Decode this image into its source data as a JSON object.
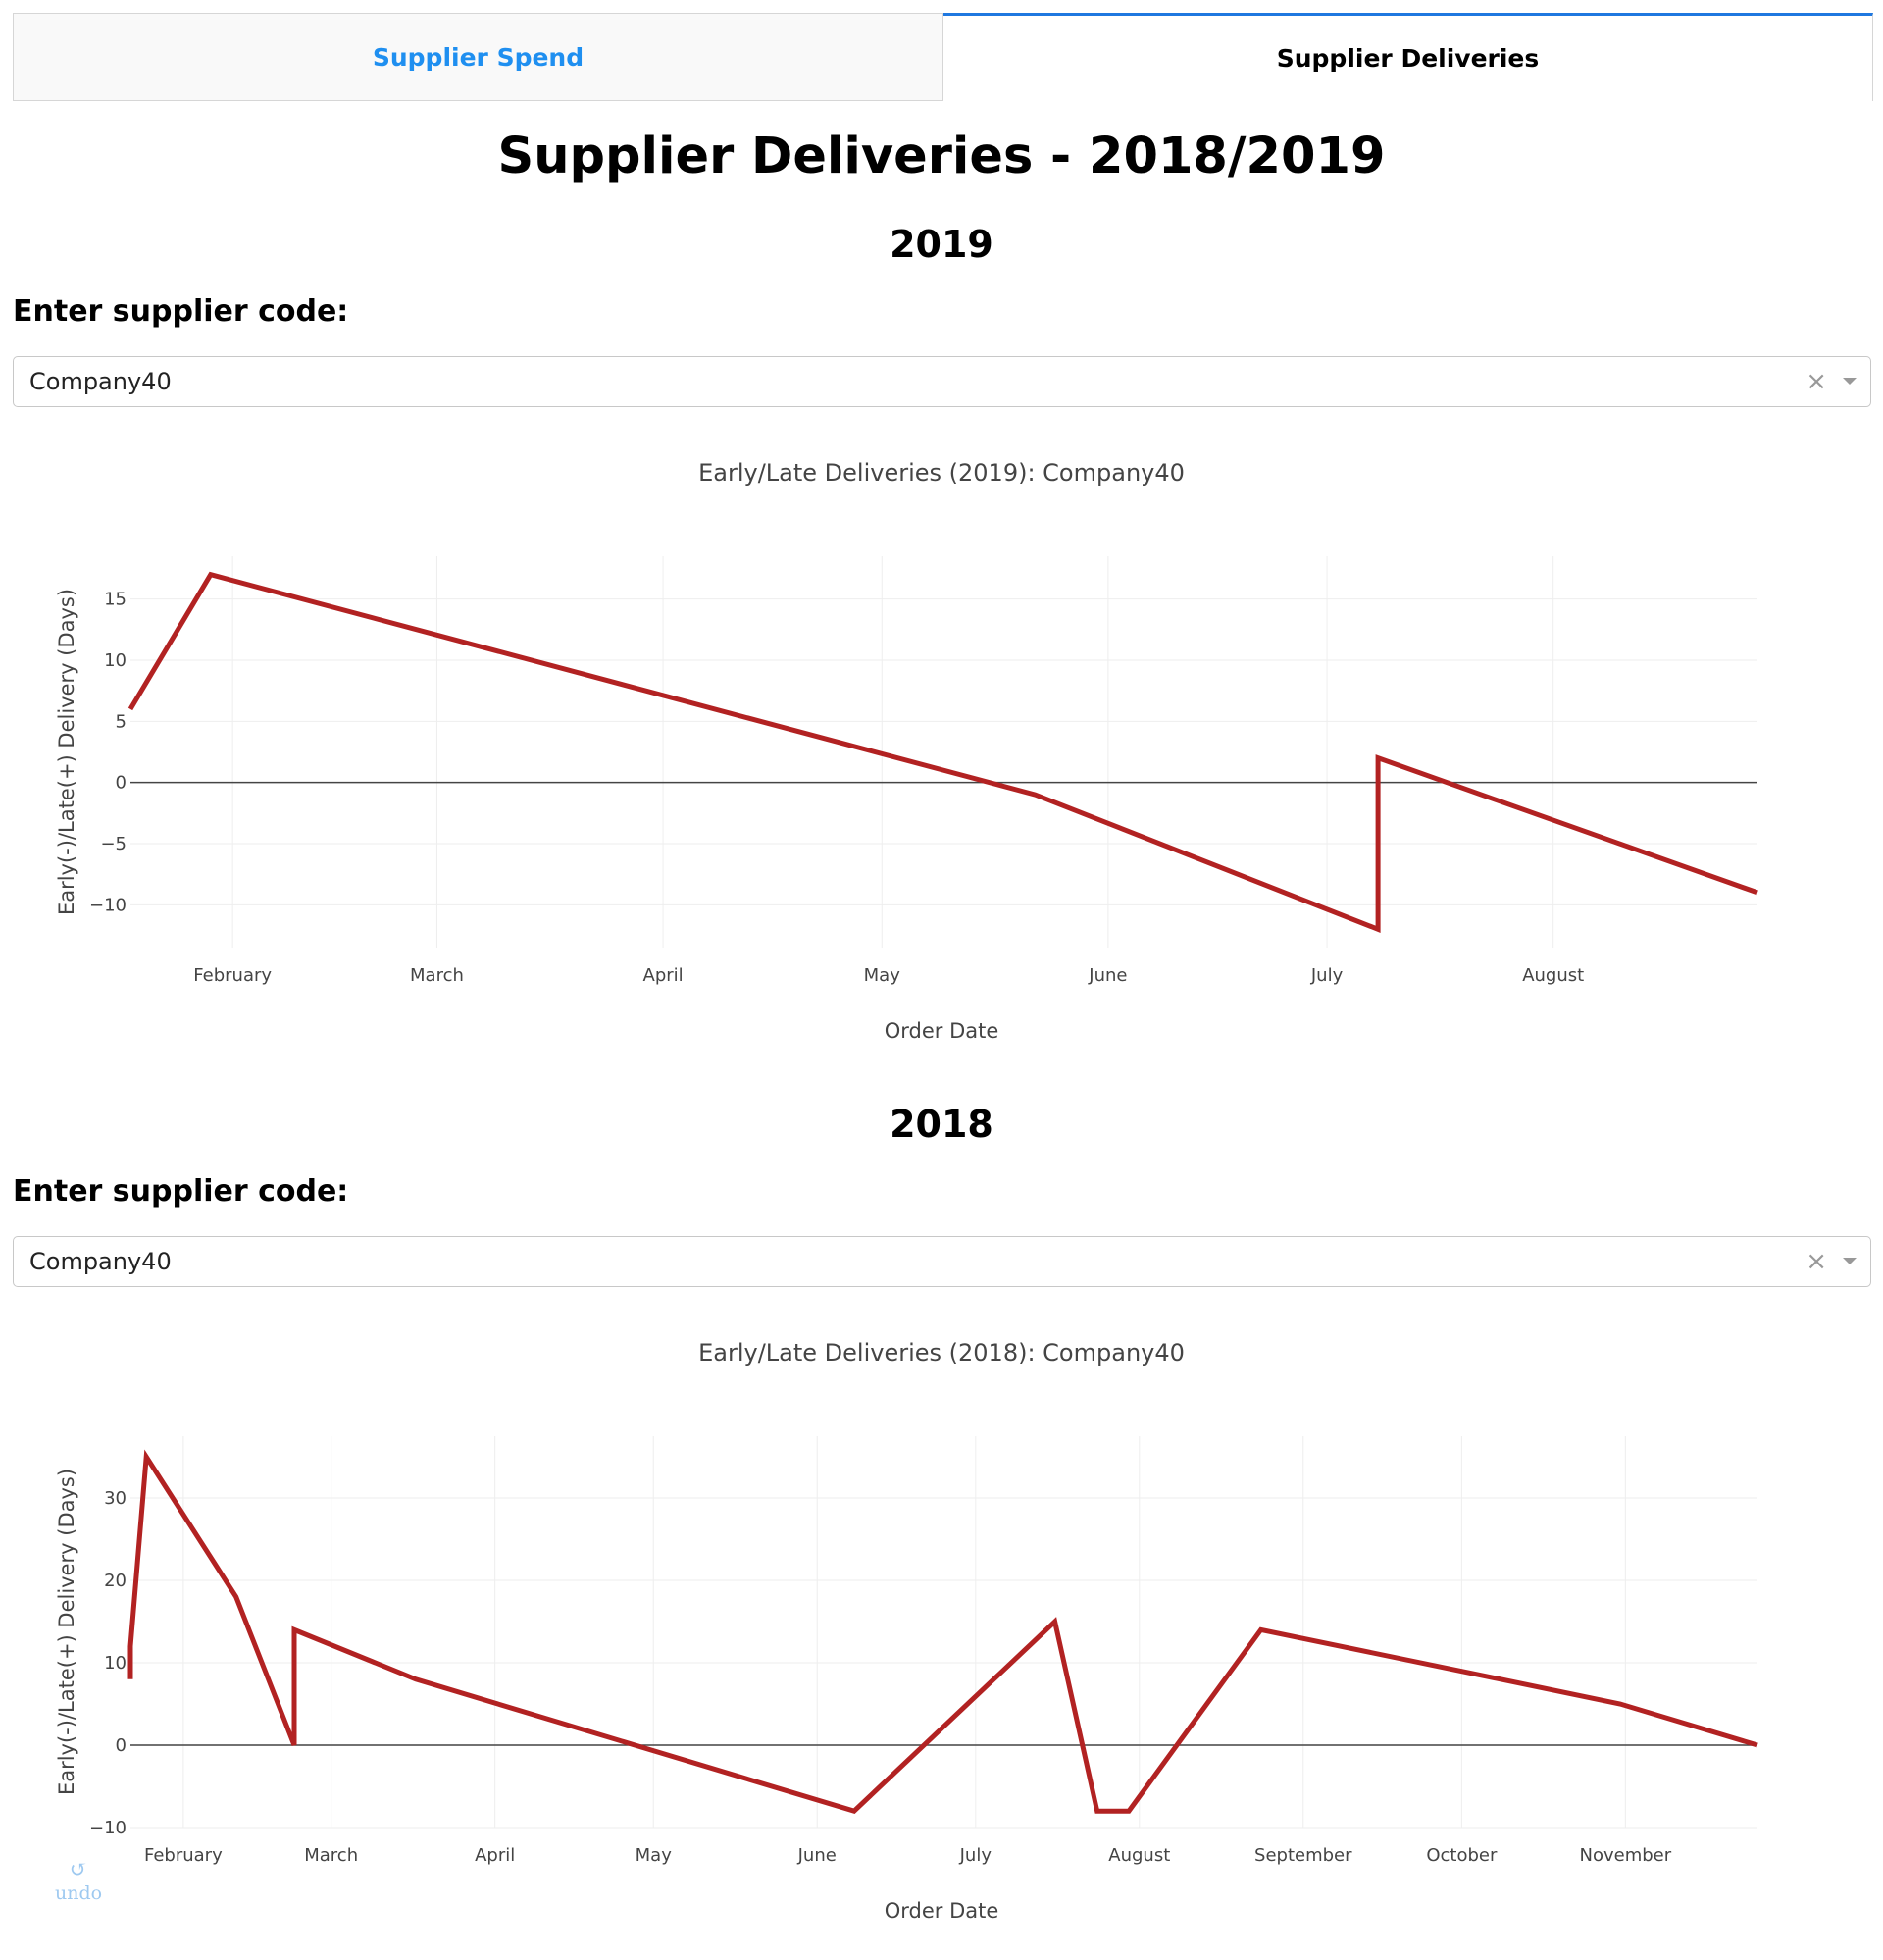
{
  "tabs": [
    {
      "label": "Supplier Spend",
      "active": false
    },
    {
      "label": "Supplier Deliveries",
      "active": true
    }
  ],
  "page_title": "Supplier Deliveries - 2018/2019",
  "sections": [
    {
      "year": "2019",
      "label": "Enter supplier code:",
      "dropdown_value": "Company40"
    },
    {
      "year": "2018",
      "label": "Enter supplier code:",
      "dropdown_value": "Company40"
    }
  ],
  "undo_label": "undo",
  "colors": {
    "line": "#b22222",
    "tab_accent": "#1f78e0",
    "tab_inactive_text": "#1f8ff0"
  },
  "chart_data": [
    {
      "type": "line",
      "title": "Early/Late Deliveries (2019): Company40",
      "xlabel": "Order Date",
      "ylabel": "Early(-)/Late(+) Delivery (Days)",
      "xlim": [
        "2019-01-18",
        "2019-08-29"
      ],
      "ylim": [
        -13.5,
        18.5
      ],
      "yticks": [
        15,
        10,
        5,
        0,
        -5,
        -10
      ],
      "ytick_labels": [
        "15",
        "10",
        "5",
        "0",
        "−5",
        "−10"
      ],
      "xticks": [
        "2019-02-01",
        "2019-03-01",
        "2019-04-01",
        "2019-05-01",
        "2019-06-01",
        "2019-07-01",
        "2019-08-01"
      ],
      "xtick_labels": [
        "February",
        "March",
        "April",
        "May",
        "June",
        "July",
        "August"
      ],
      "grid": true,
      "series": [
        {
          "x": [
            "2019-01-18",
            "2019-01-29",
            "2019-05-22",
            "2019-07-08",
            "2019-07-08",
            "2019-08-29"
          ],
          "y": [
            6,
            17,
            -1,
            -12,
            2,
            -9
          ]
        }
      ]
    },
    {
      "type": "line",
      "title": "Early/Late Deliveries (2018): Company40",
      "xlabel": "Order Date",
      "ylabel": "Early(-)/Late(+) Delivery (Days)",
      "xlim": [
        "2018-01-22",
        "2018-11-26"
      ],
      "ylim": [
        -10,
        37.5
      ],
      "yticks": [
        30,
        20,
        10,
        0,
        -10
      ],
      "ytick_labels": [
        "30",
        "20",
        "10",
        "0",
        "−10"
      ],
      "xticks": [
        "2018-02-01",
        "2018-03-01",
        "2018-04-01",
        "2018-05-01",
        "2018-06-01",
        "2018-07-01",
        "2018-08-01",
        "2018-09-01",
        "2018-10-01",
        "2018-11-01"
      ],
      "xtick_labels": [
        "February",
        "March",
        "April",
        "May",
        "June",
        "July",
        "August",
        "September",
        "October",
        "November"
      ],
      "grid": true,
      "series": [
        {
          "x": [
            "2018-01-22",
            "2018-01-22",
            "2018-01-25",
            "2018-02-11",
            "2018-02-22",
            "2018-02-22",
            "2018-03-17",
            "2018-06-08",
            "2018-07-16",
            "2018-07-24",
            "2018-07-30",
            "2018-08-24",
            "2018-10-31",
            "2018-11-26"
          ],
          "y": [
            8,
            12,
            35,
            18,
            0,
            14,
            8,
            -8,
            15,
            -8,
            -8,
            14,
            5,
            0
          ]
        }
      ]
    }
  ]
}
